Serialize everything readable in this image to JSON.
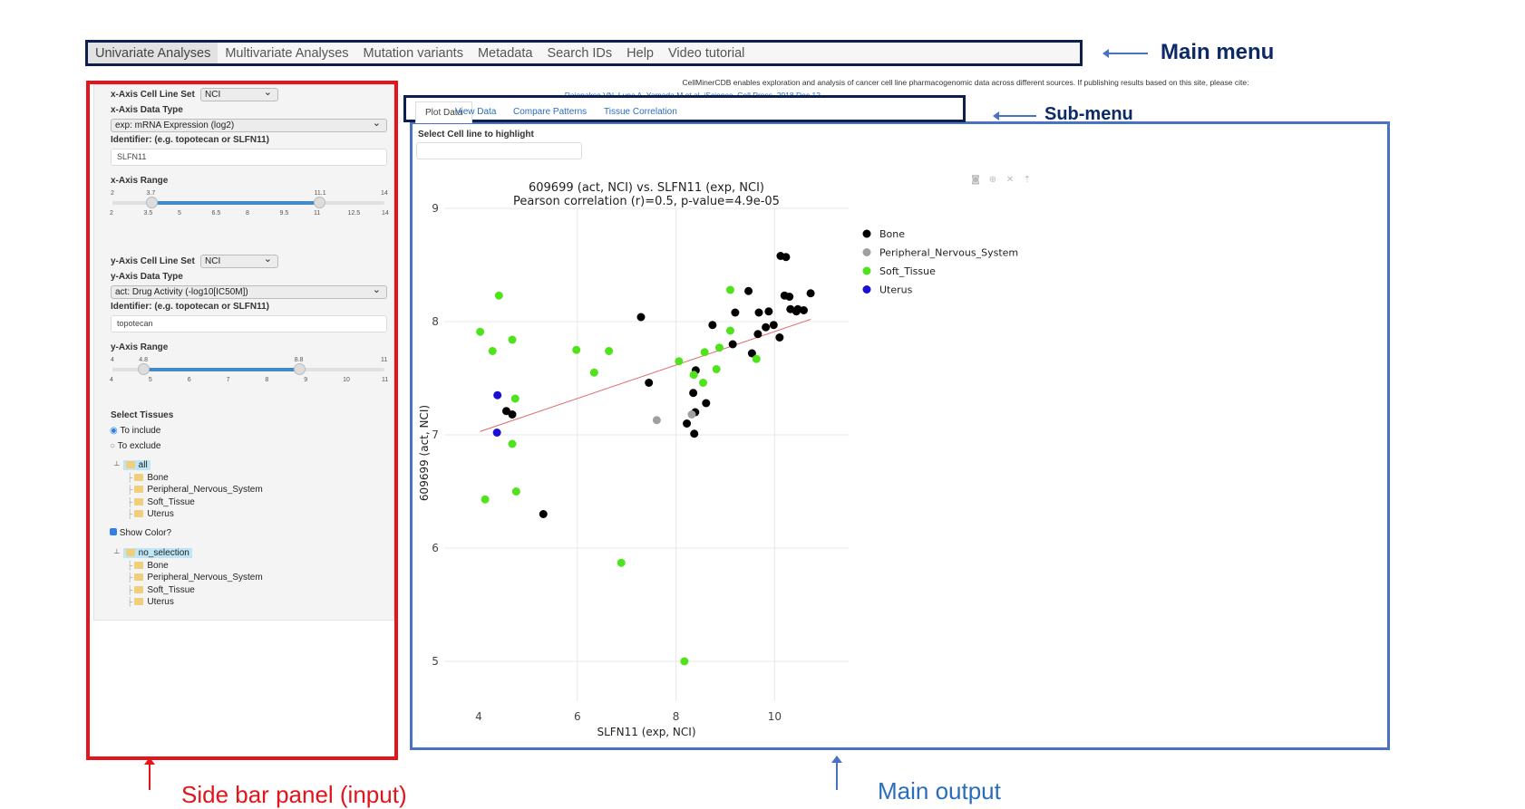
{
  "main_menu": {
    "items": [
      "Univariate Analyses",
      "Multivariate Analyses",
      "Mutation variants",
      "Metadata",
      "Search IDs",
      "Help",
      "Video tutorial"
    ],
    "active": 0
  },
  "annotations": {
    "main_menu": "Main menu",
    "sub_menu": "Sub-menu",
    "side_bar": "Side bar panel (input)",
    "main_output": "Main output"
  },
  "intro": {
    "text": "CellMinerCDB enables exploration and analysis of cancer cell line pharmacogenomic data across different sources. If publishing results based on this site, please cite:",
    "citation": "Rajapakse VN, Luna A, Yamada M et al. iScience, Cell Press. 2018 Dec 12."
  },
  "sidebar": {
    "x_cell_line_label": "x-Axis Cell Line Set",
    "x_cell_line": "NCI",
    "x_data_type_label": "x-Axis Data Type",
    "x_data_type": "exp: mRNA Expression (log2)",
    "x_identifier_label": "Identifier: (e.g. topotecan or SLFN11)",
    "x_identifier": "SLFN11",
    "x_range_label": "x-Axis Range",
    "x_range": {
      "min": "2",
      "max": "14",
      "low": "3.7",
      "high": "11.1",
      "ticks": [
        "2",
        "3.5",
        "5",
        "6.5",
        "8",
        "9.5",
        "11",
        "12.5",
        "14"
      ]
    },
    "y_cell_line_label": "y-Axis Cell Line Set",
    "y_cell_line": "NCI",
    "y_data_type_label": "y-Axis Data Type",
    "y_data_type": "act: Drug Activity (-log10[IC50M])",
    "y_identifier_label": "Identifier: (e.g. topotecan or SLFN11)",
    "y_identifier": "topotecan",
    "y_range_label": "y-Axis Range",
    "y_range": {
      "min": "4",
      "max": "11",
      "low": "4.8",
      "high": "8.8",
      "ticks": [
        "4",
        "5",
        "6",
        "7",
        "8",
        "9",
        "10",
        "11"
      ]
    },
    "select_tissues_label": "Select Tissues",
    "include_label": "To include",
    "exclude_label": "To exclude",
    "mode": "include",
    "tree1": {
      "root": "all",
      "children": [
        "Bone",
        "Peripheral_Nervous_System",
        "Soft_Tissue",
        "Uterus"
      ]
    },
    "show_color_label": "Show Color?",
    "show_color": true,
    "tree2": {
      "root": "no_selection",
      "children": [
        "Bone",
        "Peripheral_Nervous_System",
        "Soft_Tissue",
        "Uterus"
      ]
    }
  },
  "sub_menu": {
    "tabs": [
      "Plot Data",
      "View Data",
      "Compare Patterns",
      "Tissue Correlation"
    ],
    "active": 0
  },
  "highlight": {
    "label": "Select Cell line to highlight",
    "value": ""
  },
  "modebar": [
    "camera-icon",
    "zoom-icon",
    "autoscale-icon",
    "pan-icon"
  ],
  "chart_data": {
    "type": "scatter",
    "title": "609699 (act, NCI) vs. SLFN11 (exp, NCI)",
    "subtitle": "Pearson correlation (r)=0.5, p-value=4.9e-05",
    "xlabel": "SLFN11 (exp, NCI)",
    "ylabel": "609699 (act, NCI)",
    "xlim": [
      3.3,
      11.5
    ],
    "ylim": [
      4.65,
      9.0
    ],
    "xticks": [
      4,
      6,
      8,
      10
    ],
    "yticks": [
      5,
      6,
      7,
      8,
      9
    ],
    "grid": true,
    "legend": "right",
    "series": [
      {
        "name": "Bone",
        "color": "#000000",
        "points": [
          [
            5.31,
            6.3
          ],
          [
            7.29,
            8.04
          ],
          [
            7.45,
            7.46
          ],
          [
            4.56,
            7.21
          ],
          [
            4.68,
            7.18
          ],
          [
            8.4,
            7.57
          ],
          [
            8.35,
            7.37
          ],
          [
            8.39,
            7.2
          ],
          [
            8.22,
            7.1
          ],
          [
            8.37,
            7.01
          ],
          [
            8.61,
            7.28
          ],
          [
            8.74,
            7.97
          ],
          [
            9.15,
            7.8
          ],
          [
            9.2,
            8.08
          ],
          [
            9.47,
            8.27
          ],
          [
            9.54,
            7.72
          ],
          [
            9.66,
            7.89
          ],
          [
            9.68,
            8.08
          ],
          [
            9.82,
            7.95
          ],
          [
            9.88,
            8.09
          ],
          [
            9.98,
            7.97
          ],
          [
            10.1,
            7.86
          ],
          [
            10.12,
            8.58
          ],
          [
            10.23,
            8.57
          ],
          [
            10.2,
            8.23
          ],
          [
            10.3,
            8.22
          ],
          [
            10.32,
            8.11
          ],
          [
            10.44,
            8.09
          ],
          [
            10.47,
            8.11
          ],
          [
            10.59,
            8.1
          ],
          [
            10.73,
            8.25
          ]
        ]
      },
      {
        "name": "Peripheral_Nervous_System",
        "color": "#a0a0a0",
        "points": [
          [
            7.61,
            7.13
          ],
          [
            8.32,
            7.18
          ]
        ]
      },
      {
        "name": "Soft_Tissue",
        "color": "#4ee31a",
        "points": [
          [
            4.41,
            8.23
          ],
          [
            4.03,
            7.91
          ],
          [
            4.28,
            7.74
          ],
          [
            4.68,
            7.84
          ],
          [
            5.98,
            7.75
          ],
          [
            6.64,
            7.74
          ],
          [
            6.34,
            7.55
          ],
          [
            4.74,
            7.32
          ],
          [
            4.68,
            6.92
          ],
          [
            8.06,
            7.65
          ],
          [
            8.36,
            7.53
          ],
          [
            8.55,
            7.46
          ],
          [
            8.58,
            7.73
          ],
          [
            8.88,
            7.77
          ],
          [
            8.82,
            7.58
          ],
          [
            9.1,
            8.28
          ],
          [
            9.1,
            7.92
          ],
          [
            9.63,
            7.67
          ],
          [
            4.13,
            6.43
          ],
          [
            4.76,
            6.5
          ],
          [
            6.89,
            5.87
          ],
          [
            8.17,
            5.0
          ]
        ]
      },
      {
        "name": "Uterus",
        "color": "#1a0fd6",
        "points": [
          [
            4.38,
            7.35
          ],
          [
            4.37,
            7.02
          ]
        ]
      }
    ],
    "trendline": {
      "color": "#e06666",
      "from": [
        4.03,
        7.03
      ],
      "to": [
        10.73,
        8.02
      ]
    }
  }
}
